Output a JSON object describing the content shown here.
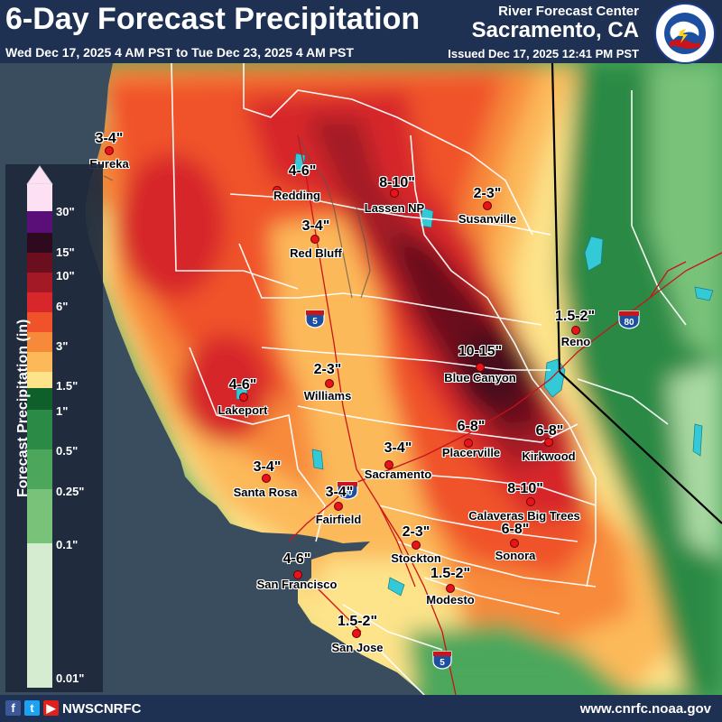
{
  "header": {
    "title": "6-Day Forecast Precipitation",
    "period": "Wed Dec 17, 2025 4 AM PST to Tue Dec 23, 2025 4 AM PST",
    "rfc_label": "River Forecast Center",
    "rfc_city": "Sacramento, CA",
    "issued": "Issued Dec 17, 2025 12:41 PM PST",
    "logo_text": "NATIONAL WEATHER SERVICE"
  },
  "legend": {
    "title": "Forecast Precipitation (in)",
    "ticks": [
      "30\"",
      "15\"",
      "10\"",
      "6\"",
      "3\"",
      "1.5\"",
      "1\"",
      "0.5\"",
      "0.25\"",
      "0.1\"",
      "0.01\""
    ],
    "colors": [
      "#fde0f3",
      "#5a0f78",
      "#2e0a1e",
      "#6b0f1e",
      "#a31a26",
      "#d7272a",
      "#f0532a",
      "#f78a3a",
      "#fcb95a",
      "#fde38a",
      "#0f5f2a",
      "#2b8a45",
      "#4ca75c",
      "#79c27a",
      "#a9d9a2",
      "#d5ecd0"
    ]
  },
  "labels": {
    "eureka": {
      "amount": "3-4\"",
      "city": "Eureka"
    },
    "redding": {
      "amount": "4-6\"",
      "city": "Redding"
    },
    "lassen": {
      "amount": "8-10\"",
      "city": "Lassen NP"
    },
    "susanville": {
      "amount": "2-3\"",
      "city": "Susanville"
    },
    "redbluff": {
      "amount": "3-4\"",
      "city": "Red Bluff"
    },
    "reno": {
      "amount": "1.5-2\"",
      "city": "Reno"
    },
    "bluecanyon": {
      "amount": "10-15\"",
      "city": "Blue Canyon"
    },
    "williams": {
      "amount": "2-3\"",
      "city": "Williams"
    },
    "lakeport": {
      "amount": "4-6\"",
      "city": "Lakeport"
    },
    "placerville": {
      "amount": "6-8\"",
      "city": "Placerville"
    },
    "kirkwood": {
      "amount": "6-8\"",
      "city": "Kirkwood"
    },
    "sacramento": {
      "amount": "3-4\"",
      "city": "Sacramento"
    },
    "santarosa": {
      "amount": "3-4\"",
      "city": "Santa Rosa"
    },
    "fairfield": {
      "amount": "3-4\"",
      "city": "Fairfield"
    },
    "calaveras": {
      "amount": "8-10\"",
      "city": "Calaveras Big Trees"
    },
    "sonora": {
      "amount": "6-8\"",
      "city": "Sonora"
    },
    "stockton": {
      "amount": "2-3\"",
      "city": "Stockton"
    },
    "sanfrancisco": {
      "amount": "4-6\"",
      "city": "San Francisco"
    },
    "modesto": {
      "amount": "1.5-2\"",
      "city": "Modesto"
    },
    "sanjose": {
      "amount": "1.5-2\"",
      "city": "San Jose"
    }
  },
  "highways": {
    "i5_north": "5",
    "i80": "80",
    "i80_west": "80",
    "i5_south": "5",
    "shield_top": "INTERSTATE"
  },
  "footer": {
    "social_icons": [
      "facebook-icon",
      "twitter-icon",
      "youtube-icon"
    ],
    "social_handle": "NWSCNRFC",
    "website": "www.cnrfc.noaa.gov"
  }
}
